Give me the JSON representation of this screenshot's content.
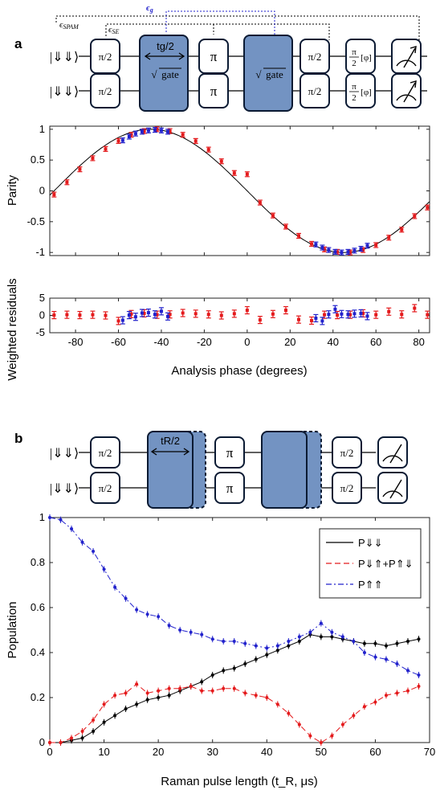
{
  "panel_a": {
    "label": "a",
    "circuit": {
      "ket": "|⇓⇓⟩",
      "top_row": [
        "π/2",
        "t_g/2 √gate",
        "π",
        "√gate",
        "π/2",
        "π/2[φ]",
        "measure"
      ],
      "bottom_row": [
        "π/2",
        "√gate",
        "π",
        "√gate",
        "π/2",
        "π/2[φ]",
        "measure"
      ],
      "bracket_spam": "ϵSPAM",
      "bracket_se": "ϵSE",
      "bracket_g": "ϵg",
      "tg_label": "tg/2",
      "sqrt_gate": "gate",
      "pi_half": "π/2",
      "pi": "π",
      "phi_gate": "[φ]"
    }
  },
  "panel_b": {
    "label": "b",
    "circuit": {
      "ket": "|⇓⇓⟩",
      "tr_label": "tR/2",
      "pi_half": "π/2",
      "pi": "π"
    }
  },
  "chart_data": [
    {
      "type": "scatter",
      "panel": "a-top",
      "ylabel": "Parity",
      "xlim": [
        -92,
        85
      ],
      "ylim": [
        -1.05,
        1.05
      ],
      "yticks": [
        -1,
        -0.5,
        0,
        0.5,
        1
      ],
      "xticks": [
        -80,
        -60,
        -40,
        -20,
        0,
        20,
        40,
        60,
        80
      ],
      "fit": "cos(2*(x+45))",
      "series": [
        {
          "color": "#e41a1c",
          "x": [
            -90,
            -84,
            -78,
            -72,
            -66,
            -60,
            -54,
            -48,
            -42,
            -36,
            -30,
            -24,
            -18,
            -12,
            -6,
            0,
            6,
            12,
            18,
            24,
            30,
            36,
            42,
            48,
            54,
            60,
            66,
            72,
            78,
            84
          ],
          "y": [
            -0.06,
            0.14,
            0.35,
            0.53,
            0.68,
            0.81,
            0.91,
            0.97,
            1.0,
            0.97,
            0.91,
            0.81,
            0.67,
            0.48,
            0.29,
            0.27,
            -0.19,
            -0.4,
            -0.58,
            -0.73,
            -0.86,
            -0.95,
            -0.99,
            -1.0,
            -0.96,
            -0.88,
            -0.76,
            -0.63,
            -0.41,
            -0.27
          ]
        },
        {
          "color": "#2222cc",
          "x": [
            -58,
            -55,
            -52,
            -49,
            -46,
            -43,
            -40,
            -37,
            32,
            35,
            38,
            41,
            44,
            47,
            50,
            53,
            56
          ],
          "y": [
            0.82,
            0.88,
            0.93,
            0.96,
            0.98,
            0.99,
            0.98,
            0.96,
            -0.87,
            -0.92,
            -0.96,
            -0.99,
            -1.0,
            -0.99,
            -0.97,
            -0.94,
            -0.89
          ]
        }
      ]
    },
    {
      "type": "scatter",
      "panel": "a-bottom",
      "ylabel": "Weighted residuals",
      "xlabel": "Analysis phase (degrees)",
      "xlim": [
        -92,
        85
      ],
      "ylim": [
        -5,
        5
      ],
      "yticks": [
        -5,
        0,
        5
      ],
      "xticks": [
        -80,
        -60,
        -40,
        -20,
        0,
        20,
        40,
        60,
        80
      ],
      "series": [
        {
          "color": "#e41a1c",
          "x": [
            -90,
            -84,
            -78,
            -72,
            -66,
            -60,
            -54,
            -48,
            -42,
            -36,
            -30,
            -24,
            -18,
            -12,
            -6,
            0,
            6,
            12,
            18,
            24,
            30,
            36,
            42,
            48,
            54,
            60,
            66,
            72,
            78,
            84
          ],
          "y": [
            0.1,
            0.2,
            0.1,
            0.2,
            0.0,
            -1.6,
            0.4,
            0.6,
            0.2,
            0.3,
            0.7,
            0.5,
            0.3,
            0.0,
            0.5,
            1.5,
            -1.3,
            0.4,
            1.5,
            -1.2,
            -1.5,
            0.2,
            0.1,
            0.2,
            0.6,
            0.2,
            1.1,
            0.3,
            2.1,
            0.2
          ]
        },
        {
          "color": "#2222cc",
          "x": [
            -58,
            -55,
            -52,
            -49,
            -46,
            -43,
            -40,
            -37,
            32,
            35,
            38,
            41,
            44,
            47,
            50,
            53,
            56
          ],
          "y": [
            -1.4,
            0.1,
            -0.4,
            0.7,
            0.8,
            0.3,
            1.2,
            -0.3,
            -0.8,
            -1.6,
            0.3,
            1.8,
            0.4,
            0.3,
            0.5,
            0.6,
            -0.2
          ]
        }
      ]
    },
    {
      "type": "line",
      "panel": "b",
      "xlabel": "Raman pulse length (t_R, μs)",
      "ylabel": "Population",
      "xlim": [
        0,
        70
      ],
      "ylim": [
        0,
        1
      ],
      "xticks": [
        0,
        10,
        20,
        30,
        40,
        50,
        60,
        70
      ],
      "yticks": [
        0,
        0.2,
        0.4,
        0.6,
        0.8,
        1
      ],
      "legend": "top-right",
      "legend_entries": [
        "P⇓⇓",
        "P⇓⇑+P⇑⇓",
        "P⇑⇑"
      ],
      "series": [
        {
          "name": "P⇓⇓",
          "color": "#000000",
          "dash": "solid",
          "x": [
            0,
            2,
            4,
            6,
            8,
            10,
            12,
            14,
            16,
            18,
            20,
            22,
            24,
            26,
            28,
            30,
            32,
            34,
            36,
            38,
            40,
            42,
            44,
            46,
            48,
            50,
            52,
            54,
            56,
            58,
            60,
            62,
            64,
            66,
            68
          ],
          "y": [
            0.0,
            0.0,
            0.01,
            0.02,
            0.05,
            0.09,
            0.12,
            0.15,
            0.17,
            0.19,
            0.2,
            0.21,
            0.23,
            0.25,
            0.27,
            0.3,
            0.32,
            0.33,
            0.35,
            0.37,
            0.39,
            0.41,
            0.43,
            0.45,
            0.48,
            0.47,
            0.47,
            0.46,
            0.45,
            0.44,
            0.44,
            0.43,
            0.44,
            0.45,
            0.46
          ]
        },
        {
          "name": "P⇓⇑+P⇑⇓",
          "color": "#e41a1c",
          "dash": "dashed",
          "x": [
            0,
            2,
            4,
            6,
            8,
            10,
            12,
            14,
            16,
            18,
            20,
            22,
            24,
            26,
            28,
            30,
            32,
            34,
            36,
            38,
            40,
            42,
            44,
            46,
            48,
            50,
            52,
            54,
            56,
            58,
            60,
            62,
            64,
            66,
            68
          ],
          "y": [
            0.0,
            0.0,
            0.02,
            0.05,
            0.1,
            0.17,
            0.21,
            0.22,
            0.26,
            0.22,
            0.23,
            0.24,
            0.24,
            0.25,
            0.23,
            0.23,
            0.24,
            0.24,
            0.22,
            0.21,
            0.2,
            0.17,
            0.13,
            0.08,
            0.03,
            0.0,
            0.03,
            0.08,
            0.12,
            0.16,
            0.18,
            0.21,
            0.22,
            0.23,
            0.25
          ]
        },
        {
          "name": "P⇑⇑",
          "color": "#2222cc",
          "dash": "dashdot",
          "x": [
            0,
            2,
            4,
            6,
            8,
            10,
            12,
            14,
            16,
            18,
            20,
            22,
            24,
            26,
            28,
            30,
            32,
            34,
            36,
            38,
            40,
            42,
            44,
            46,
            48,
            50,
            52,
            54,
            56,
            58,
            60,
            62,
            64,
            66,
            68
          ],
          "y": [
            1.0,
            0.99,
            0.95,
            0.89,
            0.85,
            0.77,
            0.69,
            0.64,
            0.59,
            0.57,
            0.56,
            0.52,
            0.5,
            0.49,
            0.48,
            0.46,
            0.45,
            0.45,
            0.44,
            0.43,
            0.42,
            0.43,
            0.45,
            0.47,
            0.49,
            0.53,
            0.49,
            0.47,
            0.45,
            0.4,
            0.38,
            0.37,
            0.35,
            0.32,
            0.3
          ]
        }
      ]
    }
  ]
}
